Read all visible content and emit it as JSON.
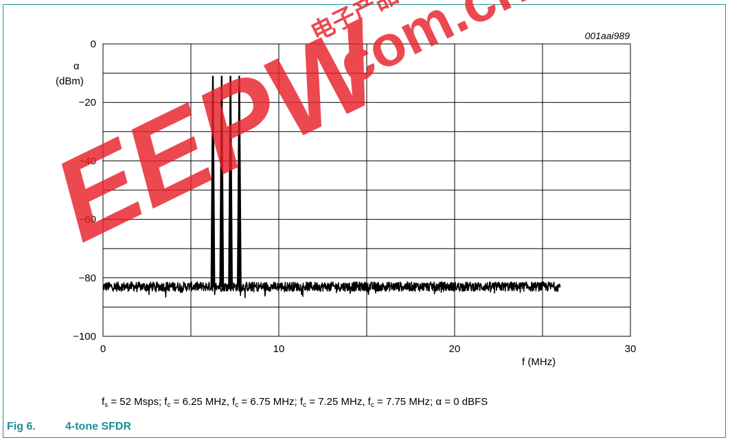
{
  "figure_id": "001aai989",
  "figure_number": "Fig 6.",
  "figure_title": "4-tone SFDR",
  "watermark": {
    "logo_text": "EEPW",
    "domain_text": ".com.cn",
    "chinese_text": "电子产品世界",
    "color": "#e8202a"
  },
  "caption": {
    "parts": [
      {
        "text": "f"
      },
      {
        "sub": "s"
      },
      {
        "text": " = 52 Msps; f"
      },
      {
        "sub": "c"
      },
      {
        "text": " = 6.25 MHz, f"
      },
      {
        "sub": "c"
      },
      {
        "text": " = 6.75 MHz; f"
      },
      {
        "sub": "c"
      },
      {
        "text": " = 7.25 MHz, f"
      },
      {
        "sub": "c"
      },
      {
        "text": " = 7.75 MHz; α = 0 dBFS"
      }
    ]
  },
  "colors": {
    "accent": "#1c8f92",
    "trace": "#000000",
    "grid": "#000000"
  },
  "chart_data": {
    "type": "line",
    "title": "",
    "xlabel": "f (MHz)",
    "ylabel": [
      "α",
      "(dBm)"
    ],
    "xlim": [
      0,
      30
    ],
    "ylim": [
      -100,
      0
    ],
    "xticks": [
      0,
      10,
      20,
      30
    ],
    "yticks": [
      0,
      -20,
      -40,
      -60,
      -80,
      -100
    ],
    "x_gridlines": [
      5,
      10,
      15,
      20,
      25
    ],
    "y_gridlines": [
      -10,
      -20,
      -30,
      -40,
      -50,
      -60,
      -70,
      -80,
      -90
    ],
    "grid": true,
    "series": [
      {
        "noise_floor": {
          "x_start": 0,
          "x_end": 26,
          "level": -83,
          "band": [
            -86,
            -80
          ]
        },
        "tones": [
          {
            "x": 6.25,
            "y": -11
          },
          {
            "x": 6.75,
            "y": -11
          },
          {
            "x": 7.25,
            "y": -11
          },
          {
            "x": 7.75,
            "y": -11
          }
        ]
      }
    ]
  }
}
